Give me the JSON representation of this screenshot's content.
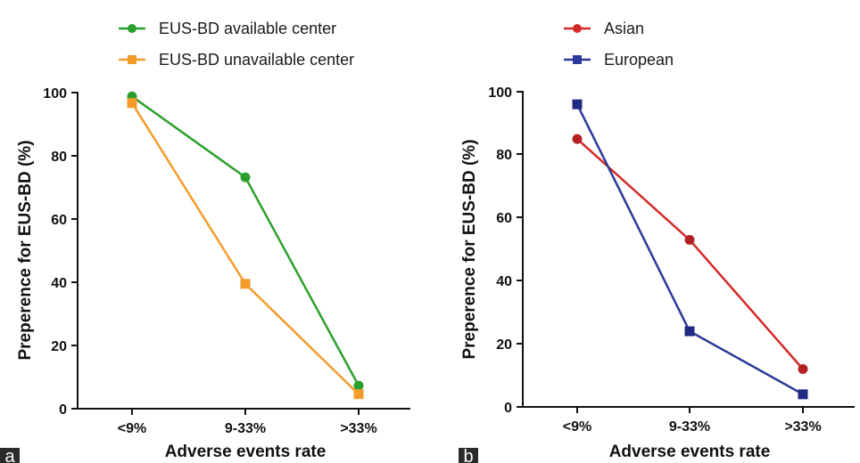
{
  "chart_data": [
    {
      "type": "line",
      "panel_label": "a",
      "categories": [
        "<9%",
        "9-33%",
        ">33%"
      ],
      "series": [
        {
          "name": "EUS-BD available center",
          "values": [
            98.8,
            73.2,
            7.3
          ],
          "color": "#2ca02c",
          "marker": "circle"
        },
        {
          "name": "EUS-BD unavailable center",
          "values": [
            96.7,
            39.5,
            4.6
          ],
          "color": "#f39c2a",
          "marker": "square"
        }
      ],
      "xlabel": "Adverse events rate",
      "ylabel": "Preperence for EUS-BD (%)",
      "ylim": [
        0,
        100
      ],
      "yticks": [
        0,
        20,
        40,
        60,
        80,
        100
      ],
      "grid": false,
      "legend_position": "top"
    },
    {
      "type": "line",
      "panel_label": "b",
      "categories": [
        "<9%",
        "9-33%",
        ">33%"
      ],
      "series": [
        {
          "name": "Asian",
          "values": [
            85,
            53,
            12
          ],
          "color": "#d62a2a",
          "marker": "circle"
        },
        {
          "name": "European",
          "values": [
            96,
            24,
            4
          ],
          "color": "#2b3a9a",
          "marker": "square"
        }
      ],
      "xlabel": "Adverse events rate",
      "ylabel": "Preperence for EUS-BD (%)",
      "ylim": [
        0,
        100
      ],
      "yticks": [
        0,
        20,
        40,
        60,
        80,
        100
      ],
      "grid": false,
      "legend_position": "top"
    }
  ]
}
